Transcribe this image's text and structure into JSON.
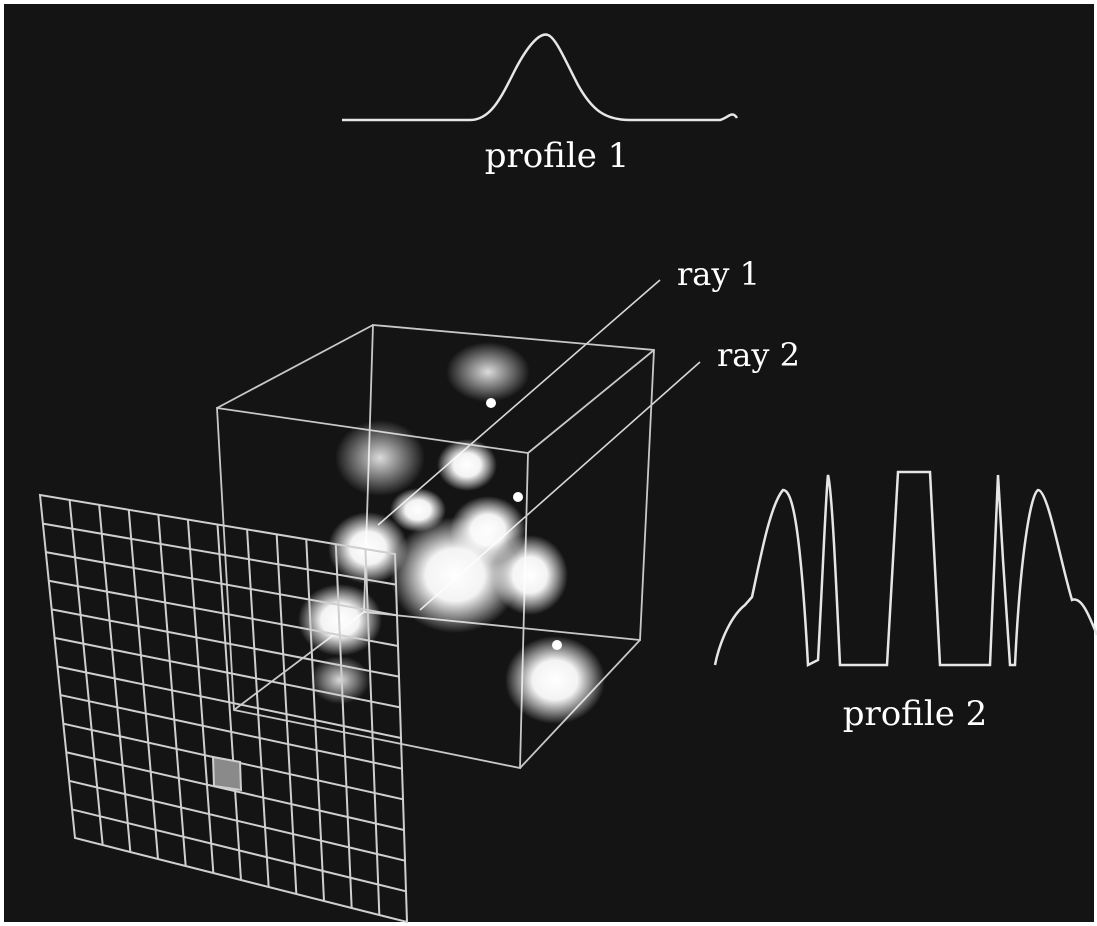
{
  "labels": {
    "profile1": "profile 1",
    "profile2": "profile 2",
    "ray1": "ray 1",
    "ray2": "ray 2"
  },
  "colors": {
    "background": "#141414",
    "lines": "#e6e6e6",
    "grid": "#cfcfcf",
    "blob": "#ffffff"
  }
}
